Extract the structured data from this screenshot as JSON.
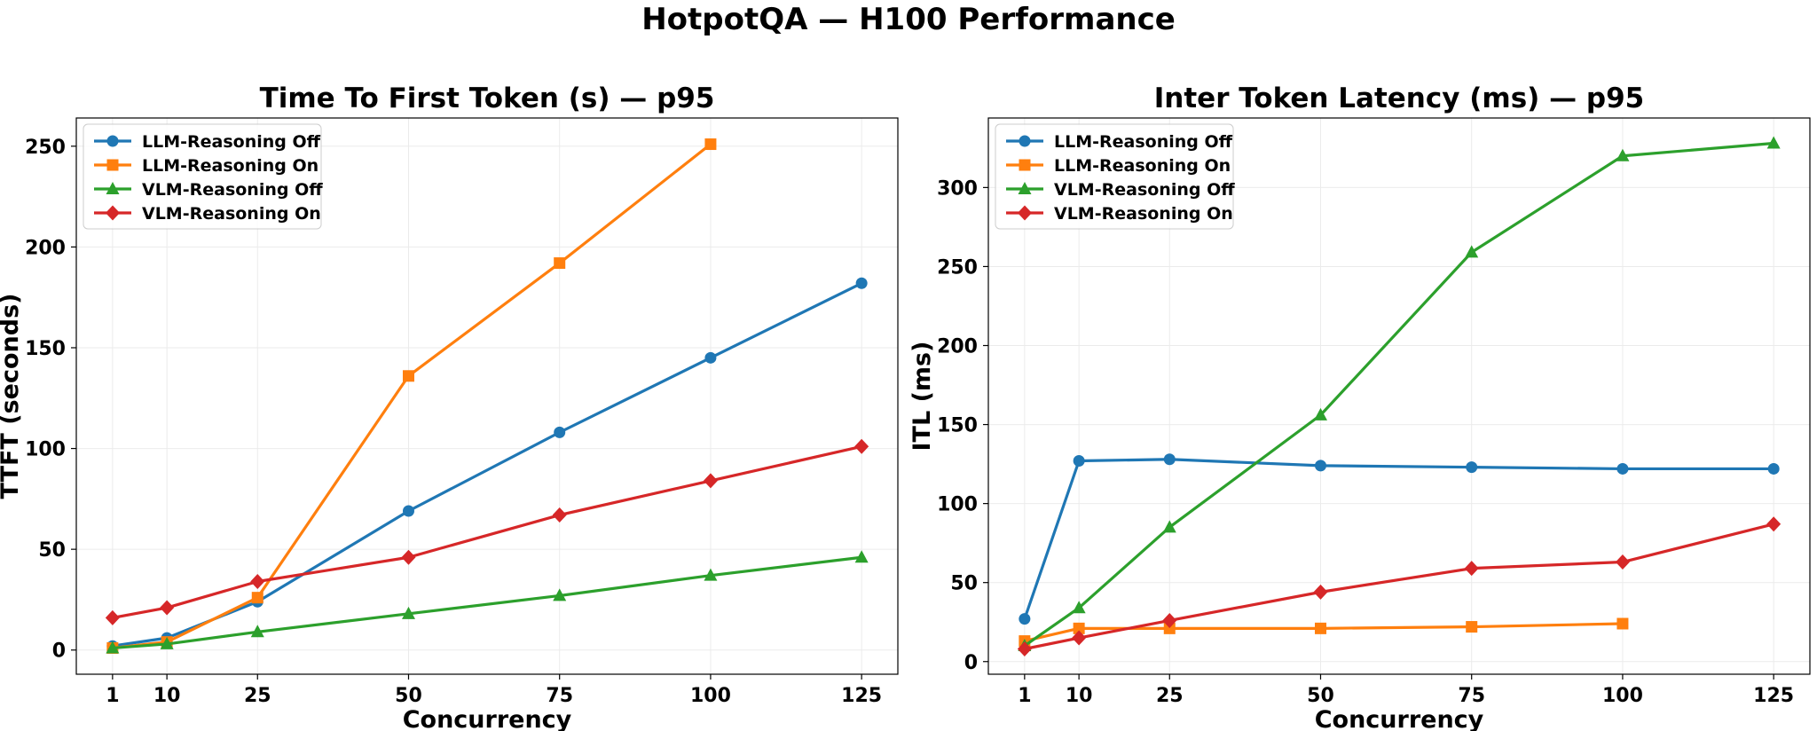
{
  "figure": {
    "title": "HotpotQA — H100 Performance"
  },
  "colors": {
    "LLM-Reasoning Off": "#1f77b4",
    "LLM-Reasoning On": "#ff7f0e",
    "VLM-Reasoning Off": "#2ca02c",
    "VLM-Reasoning On": "#d62728"
  },
  "chart_data": [
    {
      "type": "line",
      "title": "Time To First Token (s) — p95",
      "xlabel": "Concurrency",
      "ylabel": "TTFT (seconds)",
      "x_ticks": [
        1,
        10,
        25,
        50,
        75,
        100,
        125
      ],
      "y_ticks": [
        0,
        50,
        100,
        150,
        200,
        250
      ],
      "xlim": [
        -5,
        131
      ],
      "ylim": [
        -12,
        264
      ],
      "grid": true,
      "legend_position": "upper-left",
      "series": [
        {
          "name": "LLM-Reasoning Off",
          "marker": "circle",
          "x": [
            1,
            10,
            25,
            50,
            75,
            100,
            125
          ],
          "y": [
            2,
            6,
            24,
            69,
            108,
            145,
            182
          ]
        },
        {
          "name": "LLM-Reasoning On",
          "marker": "square",
          "x": [
            1,
            10,
            25,
            50,
            75,
            100
          ],
          "y": [
            1,
            4,
            26,
            136,
            192,
            251
          ]
        },
        {
          "name": "VLM-Reasoning Off",
          "marker": "triangle",
          "x": [
            1,
            10,
            25,
            50,
            75,
            100,
            125
          ],
          "y": [
            1,
            3,
            9,
            18,
            27,
            37,
            46
          ]
        },
        {
          "name": "VLM-Reasoning On",
          "marker": "diamond",
          "x": [
            1,
            10,
            25,
            50,
            75,
            100,
            125
          ],
          "y": [
            16,
            21,
            34,
            46,
            67,
            84,
            101
          ]
        }
      ]
    },
    {
      "type": "line",
      "title": "Inter Token Latency (ms) — p95",
      "xlabel": "Concurrency",
      "ylabel": "ITL (ms)",
      "x_ticks": [
        1,
        10,
        25,
        50,
        75,
        100,
        125
      ],
      "y_ticks": [
        0,
        50,
        100,
        150,
        200,
        250,
        300
      ],
      "xlim": [
        -5,
        131
      ],
      "ylim": [
        -8,
        344
      ],
      "grid": true,
      "legend_position": "upper-left",
      "series": [
        {
          "name": "LLM-Reasoning Off",
          "marker": "circle",
          "x": [
            1,
            10,
            25,
            50,
            75,
            100,
            125
          ],
          "y": [
            27,
            127,
            128,
            124,
            123,
            122,
            122
          ]
        },
        {
          "name": "LLM-Reasoning On",
          "marker": "square",
          "x": [
            1,
            10,
            25,
            50,
            75,
            100
          ],
          "y": [
            13,
            21,
            21,
            21,
            22,
            24
          ]
        },
        {
          "name": "VLM-Reasoning Off",
          "marker": "triangle",
          "x": [
            1,
            10,
            25,
            50,
            75,
            100,
            125
          ],
          "y": [
            10,
            34,
            85,
            156,
            259,
            320,
            328
          ]
        },
        {
          "name": "VLM-Reasoning On",
          "marker": "diamond",
          "x": [
            1,
            10,
            25,
            50,
            75,
            100,
            125
          ],
          "y": [
            8,
            15,
            26,
            44,
            59,
            63,
            87
          ]
        }
      ]
    }
  ]
}
